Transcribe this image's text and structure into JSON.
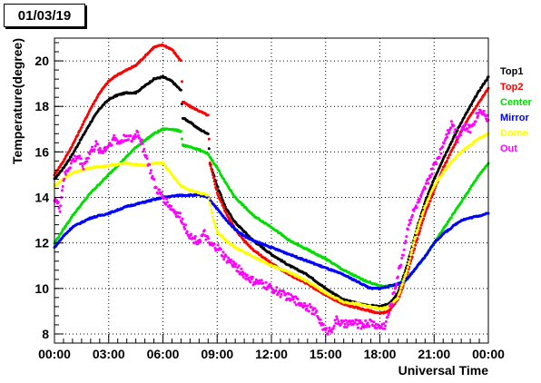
{
  "date_label": "01/03/19",
  "chart_data": {
    "type": "scatter",
    "title": "",
    "xlabel": "Universal Time",
    "ylabel": "Temperature(degree)",
    "xlim": [
      0,
      24
    ],
    "ylim": [
      7.6,
      21.0
    ],
    "x_ticks": [
      {
        "value": 0,
        "label": "00:00"
      },
      {
        "value": 3,
        "label": "03:00"
      },
      {
        "value": 6,
        "label": "06:00"
      },
      {
        "value": 9,
        "label": "09:00"
      },
      {
        "value": 12,
        "label": "12:00"
      },
      {
        "value": 15,
        "label": "15:00"
      },
      {
        "value": 18,
        "label": "18:00"
      },
      {
        "value": 21,
        "label": "21:00"
      },
      {
        "value": 24,
        "label": "00:00"
      }
    ],
    "y_ticks": [
      {
        "value": 8,
        "label": "8"
      },
      {
        "value": 10,
        "label": "10"
      },
      {
        "value": 12,
        "label": "12"
      },
      {
        "value": 14,
        "label": "14"
      },
      {
        "value": 16,
        "label": "16"
      },
      {
        "value": 18,
        "label": "18"
      },
      {
        "value": 20,
        "label": "20"
      }
    ],
    "grid": true,
    "legend_position": "right",
    "series": [
      {
        "name": "Top1",
        "color": "#000000",
        "points": [
          [
            0,
            14.8
          ],
          [
            0.5,
            15.3
          ],
          [
            1,
            15.9
          ],
          [
            1.5,
            16.6
          ],
          [
            2,
            17.3
          ],
          [
            2.5,
            17.9
          ],
          [
            3,
            18.3
          ],
          [
            3.5,
            18.5
          ],
          [
            4,
            18.6
          ],
          [
            4.5,
            18.6
          ],
          [
            5,
            18.9
          ],
          [
            5.5,
            19.2
          ],
          [
            6,
            19.3
          ],
          [
            6.5,
            19.1
          ],
          [
            7,
            18.7
          ],
          [
            7.1,
            17.5
          ],
          [
            7.5,
            17.3
          ],
          [
            8,
            17.0
          ],
          [
            8.5,
            16.8
          ],
          [
            8.6,
            15.5
          ],
          [
            9,
            14.5
          ],
          [
            9.5,
            13.5
          ],
          [
            10,
            12.9
          ],
          [
            10.5,
            12.5
          ],
          [
            11,
            12.1
          ],
          [
            12,
            11.5
          ],
          [
            13,
            11.0
          ],
          [
            14,
            10.6
          ],
          [
            15,
            10.0
          ],
          [
            16,
            9.5
          ],
          [
            17,
            9.3
          ],
          [
            18,
            9.2
          ],
          [
            18.5,
            9.3
          ],
          [
            19,
            9.8
          ],
          [
            19.5,
            11.0
          ],
          [
            20,
            12.5
          ],
          [
            20.5,
            13.8
          ],
          [
            21,
            14.8
          ],
          [
            21.5,
            15.7
          ],
          [
            22,
            16.5
          ],
          [
            22.5,
            17.3
          ],
          [
            23,
            18.0
          ],
          [
            23.5,
            18.7
          ],
          [
            24,
            19.3
          ]
        ]
      },
      {
        "name": "Top2",
        "color": "#ff0000",
        "points": [
          [
            0,
            15.0
          ],
          [
            0.5,
            15.6
          ],
          [
            1,
            16.3
          ],
          [
            1.5,
            17.1
          ],
          [
            2,
            17.9
          ],
          [
            2.5,
            18.6
          ],
          [
            3,
            19.1
          ],
          [
            3.5,
            19.4
          ],
          [
            4,
            19.6
          ],
          [
            4.5,
            19.8
          ],
          [
            5,
            20.2
          ],
          [
            5.5,
            20.6
          ],
          [
            6,
            20.7
          ],
          [
            6.5,
            20.5
          ],
          [
            7,
            20.0
          ],
          [
            7.1,
            18.2
          ],
          [
            7.5,
            18.0
          ],
          [
            8,
            17.8
          ],
          [
            8.5,
            17.6
          ],
          [
            8.6,
            15.5
          ],
          [
            9,
            14.2
          ],
          [
            9.5,
            13.3
          ],
          [
            10,
            12.6
          ],
          [
            10.5,
            12.1
          ],
          [
            11,
            11.7
          ],
          [
            12,
            11.1
          ],
          [
            13,
            10.6
          ],
          [
            14,
            10.2
          ],
          [
            15,
            9.7
          ],
          [
            16,
            9.3
          ],
          [
            17,
            9.1
          ],
          [
            18,
            8.9
          ],
          [
            18.5,
            9.0
          ],
          [
            19,
            9.5
          ],
          [
            19.5,
            10.6
          ],
          [
            20,
            12.0
          ],
          [
            20.5,
            13.3
          ],
          [
            21,
            14.3
          ],
          [
            21.5,
            15.3
          ],
          [
            22,
            16.1
          ],
          [
            22.5,
            16.9
          ],
          [
            23,
            17.6
          ],
          [
            23.5,
            18.2
          ],
          [
            24,
            18.8
          ]
        ]
      },
      {
        "name": "Center",
        "color": "#00dd00",
        "points": [
          [
            0,
            12.0
          ],
          [
            0.5,
            12.6
          ],
          [
            1,
            13.2
          ],
          [
            1.5,
            13.7
          ],
          [
            2,
            14.2
          ],
          [
            2.5,
            14.6
          ],
          [
            3,
            15.0
          ],
          [
            3.5,
            15.4
          ],
          [
            4,
            15.8
          ],
          [
            4.5,
            16.2
          ],
          [
            5,
            16.5
          ],
          [
            5.5,
            16.8
          ],
          [
            6,
            17.0
          ],
          [
            6.5,
            17.0
          ],
          [
            7,
            16.9
          ],
          [
            7.1,
            16.3
          ],
          [
            7.5,
            16.2
          ],
          [
            8,
            16.1
          ],
          [
            8.5,
            15.9
          ],
          [
            9,
            15.3
          ],
          [
            9.5,
            14.6
          ],
          [
            10,
            14.0
          ],
          [
            10.5,
            13.6
          ],
          [
            11,
            13.2
          ],
          [
            12,
            12.7
          ],
          [
            13,
            12.1
          ],
          [
            14,
            11.7
          ],
          [
            15,
            11.3
          ],
          [
            16,
            10.8
          ],
          [
            17,
            10.4
          ],
          [
            18,
            10.1
          ],
          [
            18.5,
            10.1
          ],
          [
            19,
            10.2
          ],
          [
            19.5,
            10.4
          ],
          [
            20,
            10.9
          ],
          [
            20.5,
            11.4
          ],
          [
            21,
            12.0
          ],
          [
            21.5,
            12.6
          ],
          [
            22,
            13.2
          ],
          [
            22.5,
            13.8
          ],
          [
            23,
            14.4
          ],
          [
            23.5,
            15.0
          ],
          [
            24,
            15.5
          ]
        ]
      },
      {
        "name": "Mirror",
        "color": "#0000ff",
        "points": [
          [
            0,
            11.8
          ],
          [
            0.5,
            12.3
          ],
          [
            1,
            12.7
          ],
          [
            1.5,
            12.9
          ],
          [
            2,
            13.1
          ],
          [
            3,
            13.3
          ],
          [
            4,
            13.6
          ],
          [
            5,
            13.8
          ],
          [
            6,
            14.0
          ],
          [
            7,
            14.1
          ],
          [
            8,
            14.1
          ],
          [
            8.5,
            14.0
          ],
          [
            9,
            13.5
          ],
          [
            9.5,
            13.0
          ],
          [
            10,
            12.6
          ],
          [
            10.5,
            12.3
          ],
          [
            11,
            12.1
          ],
          [
            12,
            11.8
          ],
          [
            13,
            11.5
          ],
          [
            14,
            11.2
          ],
          [
            15,
            10.9
          ],
          [
            16,
            10.6
          ],
          [
            17,
            10.2
          ],
          [
            17.5,
            10.0
          ],
          [
            18,
            10.0
          ],
          [
            18.5,
            10.1
          ],
          [
            19,
            10.2
          ],
          [
            19.5,
            10.4
          ],
          [
            20,
            10.9
          ],
          [
            20.5,
            11.4
          ],
          [
            21,
            12.0
          ],
          [
            21.5,
            12.4
          ],
          [
            22,
            12.7
          ],
          [
            22.5,
            13.0
          ],
          [
            23,
            13.1
          ],
          [
            23.5,
            13.2
          ],
          [
            24,
            13.3
          ]
        ]
      },
      {
        "name": "Dome",
        "color": "#ffff00",
        "points": [
          [
            0,
            14.5
          ],
          [
            0.5,
            14.8
          ],
          [
            1,
            15.1
          ],
          [
            1.5,
            15.2
          ],
          [
            2,
            15.3
          ],
          [
            3,
            15.4
          ],
          [
            4,
            15.5
          ],
          [
            5,
            15.4
          ],
          [
            5.5,
            15.5
          ],
          [
            6,
            15.5
          ],
          [
            6.5,
            15.0
          ],
          [
            7,
            14.5
          ],
          [
            7.5,
            14.3
          ],
          [
            8,
            14.2
          ],
          [
            8.5,
            14.1
          ],
          [
            8.8,
            13.0
          ],
          [
            9,
            12.5
          ],
          [
            9.5,
            12.1
          ],
          [
            10,
            11.8
          ],
          [
            11,
            11.4
          ],
          [
            12,
            11.0
          ],
          [
            13,
            10.7
          ],
          [
            14,
            10.3
          ],
          [
            15,
            9.8
          ],
          [
            16,
            9.4
          ],
          [
            17,
            9.3
          ],
          [
            18,
            9.1
          ],
          [
            18.5,
            9.2
          ],
          [
            19,
            9.6
          ],
          [
            19.5,
            10.8
          ],
          [
            20,
            12.4
          ],
          [
            20.5,
            13.6
          ],
          [
            21,
            14.5
          ],
          [
            21.5,
            15.1
          ],
          [
            22,
            15.6
          ],
          [
            22.5,
            16.0
          ],
          [
            23,
            16.3
          ],
          [
            23.5,
            16.6
          ],
          [
            24,
            16.8
          ]
        ]
      },
      {
        "name": "Out",
        "color": "#ff00ff",
        "points": [
          [
            0,
            14.0
          ],
          [
            0.3,
            13.5
          ],
          [
            0.5,
            14.8
          ],
          [
            0.8,
            15.3
          ],
          [
            1,
            15.6
          ],
          [
            1.3,
            15.8
          ],
          [
            1.6,
            15.4
          ],
          [
            2,
            16.0
          ],
          [
            2.3,
            16.3
          ],
          [
            2.6,
            16.0
          ],
          [
            3,
            16.3
          ],
          [
            3.3,
            16.6
          ],
          [
            3.6,
            16.4
          ],
          [
            4,
            16.7
          ],
          [
            4.3,
            16.5
          ],
          [
            4.6,
            16.9
          ],
          [
            5,
            16.0
          ],
          [
            5.3,
            15.2
          ],
          [
            5.6,
            14.4
          ],
          [
            6,
            14.0
          ],
          [
            6.5,
            13.5
          ],
          [
            7,
            13.1
          ],
          [
            7.3,
            12.6
          ],
          [
            7.6,
            12.2
          ],
          [
            8,
            12.1
          ],
          [
            8.3,
            12.4
          ],
          [
            8.6,
            11.9
          ],
          [
            9,
            11.8
          ],
          [
            9.5,
            11.3
          ],
          [
            10,
            11.0
          ],
          [
            10.5,
            10.6
          ],
          [
            11,
            10.3
          ],
          [
            11.5,
            10.2
          ],
          [
            12,
            10.0
          ],
          [
            12.5,
            9.8
          ],
          [
            13,
            9.6
          ],
          [
            13.5,
            9.4
          ],
          [
            14,
            9.2
          ],
          [
            14.5,
            8.9
          ],
          [
            14.8,
            8.4
          ],
          [
            15,
            8.1
          ],
          [
            15.3,
            8.2
          ],
          [
            15.6,
            8.6
          ],
          [
            16,
            8.4
          ],
          [
            16.5,
            8.5
          ],
          [
            17,
            8.4
          ],
          [
            17.5,
            8.5
          ],
          [
            18,
            8.3
          ],
          [
            18.3,
            8.4
          ],
          [
            18.6,
            9.2
          ],
          [
            19,
            10.6
          ],
          [
            19.3,
            11.6
          ],
          [
            19.6,
            12.9
          ],
          [
            20,
            13.6
          ],
          [
            20.3,
            14.0
          ],
          [
            20.6,
            14.6
          ],
          [
            21,
            15.4
          ],
          [
            21.3,
            15.9
          ],
          [
            21.6,
            16.6
          ],
          [
            22,
            17.3
          ],
          [
            22.3,
            16.6
          ],
          [
            22.6,
            17.1
          ],
          [
            23,
            17.0
          ],
          [
            23.3,
            17.5
          ],
          [
            23.6,
            17.9
          ],
          [
            24,
            17.4
          ]
        ]
      }
    ]
  }
}
